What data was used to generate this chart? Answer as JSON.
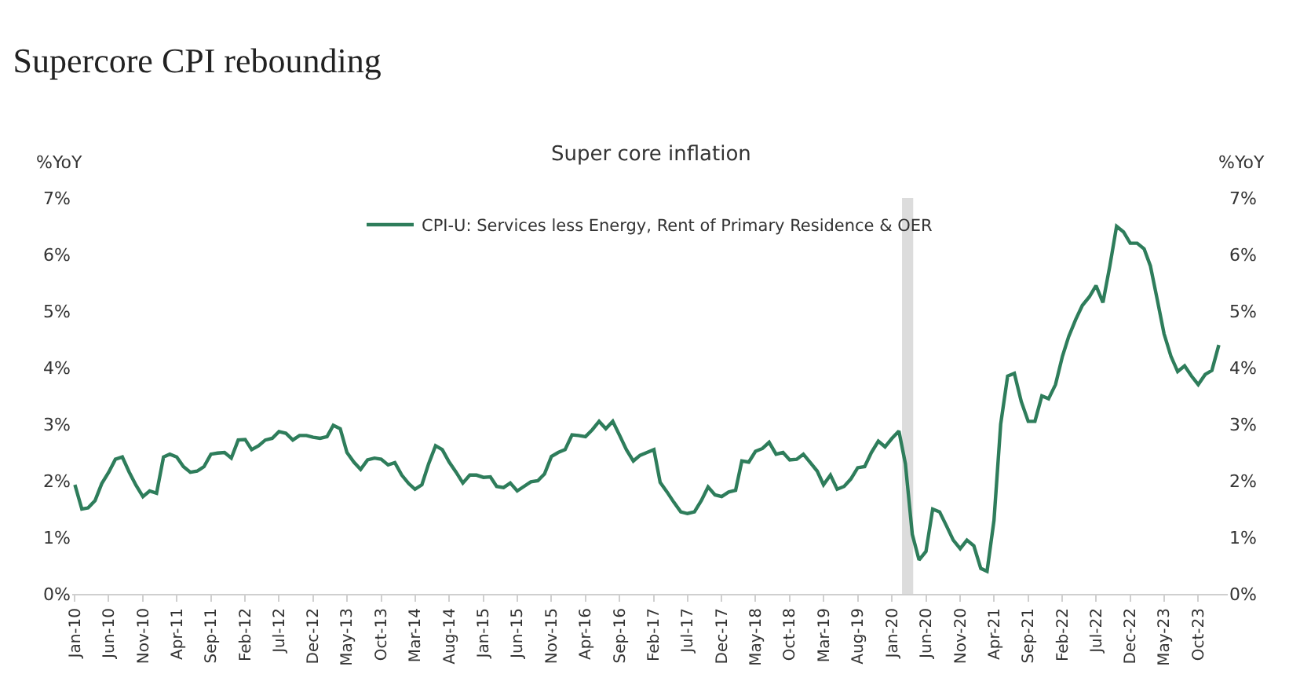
{
  "chart_data": {
    "type": "line",
    "title": "Supercore CPI rebounding",
    "subtitle": "Super core inflation",
    "ylabel": "%YoY",
    "y2label": "%YoY",
    "x": [
      "2010-01",
      "2010-02",
      "2010-03",
      "2010-04",
      "2010-05",
      "2010-06",
      "2010-07",
      "2010-08",
      "2010-09",
      "2010-10",
      "2010-11",
      "2010-12",
      "2011-01",
      "2011-02",
      "2011-03",
      "2011-04",
      "2011-05",
      "2011-06",
      "2011-07",
      "2011-08",
      "2011-09",
      "2011-10",
      "2011-11",
      "2011-12",
      "2012-01",
      "2012-02",
      "2012-03",
      "2012-04",
      "2012-05",
      "2012-06",
      "2012-07",
      "2012-08",
      "2012-09",
      "2012-10",
      "2012-11",
      "2012-12",
      "2013-01",
      "2013-02",
      "2013-03",
      "2013-04",
      "2013-05",
      "2013-06",
      "2013-07",
      "2013-08",
      "2013-09",
      "2013-10",
      "2013-11",
      "2013-12",
      "2014-01",
      "2014-02",
      "2014-03",
      "2014-04",
      "2014-05",
      "2014-06",
      "2014-07",
      "2014-08",
      "2014-09",
      "2014-10",
      "2014-11",
      "2014-12",
      "2015-01",
      "2015-02",
      "2015-03",
      "2015-04",
      "2015-05",
      "2015-06",
      "2015-07",
      "2015-08",
      "2015-09",
      "2015-10",
      "2015-11",
      "2015-12",
      "2016-01",
      "2016-02",
      "2016-03",
      "2016-04",
      "2016-05",
      "2016-06",
      "2016-07",
      "2016-08",
      "2016-09",
      "2016-10",
      "2016-11",
      "2016-12",
      "2017-01",
      "2017-02",
      "2017-03",
      "2017-04",
      "2017-05",
      "2017-06",
      "2017-07",
      "2017-08",
      "2017-09",
      "2017-10",
      "2017-11",
      "2017-12",
      "2018-01",
      "2018-02",
      "2018-03",
      "2018-04",
      "2018-05",
      "2018-06",
      "2018-07",
      "2018-08",
      "2018-09",
      "2018-10",
      "2018-11",
      "2018-12",
      "2019-01",
      "2019-02",
      "2019-03",
      "2019-04",
      "2019-05",
      "2019-06",
      "2019-07",
      "2019-08",
      "2019-09",
      "2019-10",
      "2019-11",
      "2019-12",
      "2020-01",
      "2020-02",
      "2020-03",
      "2020-04",
      "2020-05",
      "2020-06",
      "2020-07",
      "2020-08",
      "2020-09",
      "2020-10",
      "2020-11",
      "2020-12",
      "2021-01",
      "2021-02",
      "2021-03",
      "2021-04",
      "2021-05",
      "2021-06",
      "2021-07",
      "2021-08",
      "2021-09",
      "2021-10",
      "2021-11",
      "2021-12",
      "2022-01",
      "2022-02",
      "2022-03",
      "2022-04",
      "2022-05",
      "2022-06",
      "2022-07",
      "2022-08",
      "2022-09",
      "2022-10",
      "2022-11",
      "2022-12",
      "2023-01",
      "2023-02",
      "2023-03",
      "2023-04",
      "2023-05",
      "2023-06",
      "2023-07",
      "2023-08",
      "2023-09",
      "2023-10",
      "2023-11",
      "2023-12",
      "2024-01"
    ],
    "series": [
      {
        "name": "CPI-U: Services less Energy, Rent of Primary Residence & OER",
        "color": "#2e7d5b",
        "values": [
          1.93,
          1.5,
          1.52,
          1.65,
          1.95,
          2.15,
          2.38,
          2.42,
          2.15,
          1.92,
          1.72,
          1.82,
          1.78,
          2.42,
          2.47,
          2.42,
          2.25,
          2.15,
          2.17,
          2.25,
          2.47,
          2.49,
          2.5,
          2.4,
          2.72,
          2.73,
          2.55,
          2.62,
          2.72,
          2.75,
          2.87,
          2.84,
          2.72,
          2.8,
          2.8,
          2.77,
          2.75,
          2.78,
          2.98,
          2.92,
          2.5,
          2.33,
          2.2,
          2.37,
          2.4,
          2.38,
          2.28,
          2.32,
          2.1,
          1.95,
          1.85,
          1.93,
          2.3,
          2.62,
          2.55,
          2.33,
          2.15,
          1.96,
          2.1,
          2.1,
          2.06,
          2.07,
          1.9,
          1.88,
          1.96,
          1.82,
          1.9,
          1.98,
          2.0,
          2.12,
          2.43,
          2.5,
          2.55,
          2.81,
          2.8,
          2.78,
          2.9,
          3.05,
          2.92,
          3.05,
          2.8,
          2.55,
          2.35,
          2.45,
          2.5,
          2.55,
          1.97,
          1.8,
          1.62,
          1.45,
          1.42,
          1.45,
          1.65,
          1.89,
          1.75,
          1.72,
          1.8,
          1.83,
          2.35,
          2.33,
          2.52,
          2.57,
          2.68,
          2.47,
          2.5,
          2.37,
          2.38,
          2.47,
          2.32,
          2.17,
          1.93,
          2.1,
          1.85,
          1.9,
          2.03,
          2.23,
          2.25,
          2.5,
          2.7,
          2.6,
          2.75,
          2.88,
          2.3,
          1.05,
          0.6,
          0.75,
          1.5,
          1.45,
          1.2,
          0.95,
          0.8,
          0.95,
          0.85,
          0.45,
          0.4,
          1.3,
          3.0,
          3.85,
          3.9,
          3.4,
          3.05,
          3.05,
          3.5,
          3.45,
          3.7,
          4.2,
          4.55,
          4.85,
          5.1,
          5.25,
          5.45,
          5.15,
          5.8,
          6.5,
          6.4,
          6.2,
          6.2,
          6.1,
          5.8,
          5.2,
          4.6,
          4.2,
          3.93,
          4.03,
          3.85,
          3.7,
          3.88,
          3.95,
          4.4
        ]
      }
    ],
    "xlim": [
      "2009-12-20",
      "2024-02-10"
    ],
    "xticks": [
      {
        "value": "2010-01",
        "label": "Jan-10"
      },
      {
        "value": "2010-06",
        "label": "Jun-10"
      },
      {
        "value": "2010-11",
        "label": "Nov-10"
      },
      {
        "value": "2011-04",
        "label": "Apr-11"
      },
      {
        "value": "2011-09",
        "label": "Sep-11"
      },
      {
        "value": "2012-02",
        "label": "Feb-12"
      },
      {
        "value": "2012-07",
        "label": "Jul-12"
      },
      {
        "value": "2012-12",
        "label": "Dec-12"
      },
      {
        "value": "2013-05",
        "label": "May-13"
      },
      {
        "value": "2013-10",
        "label": "Oct-13"
      },
      {
        "value": "2014-03",
        "label": "Mar-14"
      },
      {
        "value": "2014-08",
        "label": "Aug-14"
      },
      {
        "value": "2015-01",
        "label": "Jan-15"
      },
      {
        "value": "2015-06",
        "label": "Jun-15"
      },
      {
        "value": "2015-11",
        "label": "Nov-15"
      },
      {
        "value": "2016-04",
        "label": "Apr-16"
      },
      {
        "value": "2016-09",
        "label": "Sep-16"
      },
      {
        "value": "2017-02",
        "label": "Feb-17"
      },
      {
        "value": "2017-07",
        "label": "Jul-17"
      },
      {
        "value": "2017-12",
        "label": "Dec-17"
      },
      {
        "value": "2018-05",
        "label": "May-18"
      },
      {
        "value": "2018-10",
        "label": "Oct-18"
      },
      {
        "value": "2019-03",
        "label": "Mar-19"
      },
      {
        "value": "2019-08",
        "label": "Aug-19"
      },
      {
        "value": "2020-01",
        "label": "Jan-20"
      },
      {
        "value": "2020-06",
        "label": "Jun-20"
      },
      {
        "value": "2020-11",
        "label": "Nov-20"
      },
      {
        "value": "2021-04",
        "label": "Apr-21"
      },
      {
        "value": "2021-09",
        "label": "Sep-21"
      },
      {
        "value": "2022-02",
        "label": "Feb-22"
      },
      {
        "value": "2022-07",
        "label": "Jul-22"
      },
      {
        "value": "2022-12",
        "label": "Dec-22"
      },
      {
        "value": "2023-05",
        "label": "May-23"
      },
      {
        "value": "2023-10",
        "label": "Oct-23"
      }
    ],
    "ylim": [
      0,
      7
    ],
    "yticks": [
      {
        "value": 0,
        "label": "0%"
      },
      {
        "value": 1,
        "label": "1%"
      },
      {
        "value": 2,
        "label": "2%"
      },
      {
        "value": 3,
        "label": "3%"
      },
      {
        "value": 4,
        "label": "4%"
      },
      {
        "value": 5,
        "label": "5%"
      },
      {
        "value": 6,
        "label": "6%"
      },
      {
        "value": 7,
        "label": "7%"
      }
    ],
    "y2lim": [
      0,
      7
    ],
    "y2ticks": [
      {
        "value": 0,
        "label": "0%"
      },
      {
        "value": 1,
        "label": "1%"
      },
      {
        "value": 2,
        "label": "2%"
      },
      {
        "value": 3,
        "label": "3%"
      },
      {
        "value": 4,
        "label": "4%"
      },
      {
        "value": 5,
        "label": "5%"
      },
      {
        "value": 6,
        "label": "6%"
      },
      {
        "value": 7,
        "label": "7%"
      }
    ],
    "bands": [
      {
        "axis": "x",
        "from": "2020-02-15",
        "to": "2020-04-05",
        "label": null,
        "color": "#dcdcdc"
      }
    ],
    "grid": false,
    "legend": "top",
    "marker": "none",
    "line_style": "solid"
  }
}
